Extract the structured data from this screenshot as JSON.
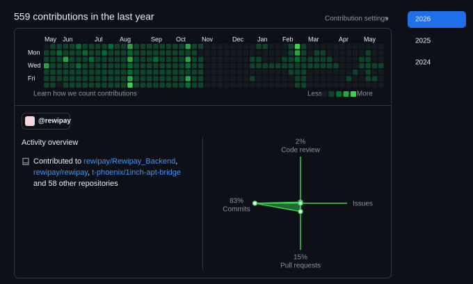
{
  "header": {
    "title": "559 contributions in the last year",
    "settings": "Contribution settings"
  },
  "years": [
    "2026",
    "2025",
    "2024"
  ],
  "contributions": {
    "months": [
      "May",
      "Jun",
      "Jul",
      "Aug",
      "Sep",
      "Oct",
      "Nov",
      "Dec",
      "Jan",
      "Feb",
      "Mar",
      "Apr",
      "May"
    ],
    "days": [
      "Mon",
      "Wed",
      "Fri"
    ],
    "level_colors": [
      "#161b22",
      "#0e4429",
      "#006d32",
      "#26a641",
      "#39d353"
    ],
    "levels": [
      [
        0,
        1,
        1,
        1,
        1,
        2,
        1,
        1,
        1,
        1,
        2,
        1,
        1,
        3,
        1,
        1,
        1,
        1,
        1,
        1,
        1,
        1,
        3,
        1,
        1,
        0,
        0,
        0,
        0,
        0,
        0,
        0,
        0,
        1,
        1,
        0,
        0,
        0,
        1,
        4,
        1,
        0,
        0,
        0,
        0,
        0,
        0,
        0,
        0,
        0,
        0,
        0,
        0
      ],
      [
        1,
        1,
        2,
        1,
        1,
        1,
        2,
        1,
        1,
        2,
        1,
        1,
        1,
        2,
        1,
        1,
        1,
        1,
        1,
        1,
        1,
        1,
        1,
        1,
        0,
        0,
        0,
        0,
        0,
        0,
        0,
        0,
        0,
        0,
        0,
        0,
        0,
        0,
        1,
        3,
        1,
        0,
        1,
        1,
        0,
        0,
        0,
        0,
        0,
        0,
        1,
        0,
        0
      ],
      [
        1,
        1,
        1,
        3,
        1,
        1,
        1,
        2,
        1,
        1,
        1,
        1,
        1,
        3,
        1,
        1,
        1,
        2,
        1,
        1,
        1,
        1,
        3,
        1,
        1,
        0,
        0,
        0,
        0,
        0,
        0,
        0,
        1,
        1,
        0,
        0,
        0,
        1,
        1,
        2,
        1,
        1,
        1,
        1,
        1,
        0,
        0,
        0,
        0,
        1,
        1,
        0,
        0
      ],
      [
        3,
        1,
        1,
        1,
        1,
        2,
        1,
        1,
        1,
        1,
        1,
        1,
        1,
        2,
        1,
        1,
        1,
        1,
        1,
        1,
        1,
        1,
        2,
        1,
        1,
        0,
        0,
        0,
        0,
        0,
        0,
        0,
        1,
        1,
        1,
        1,
        1,
        1,
        1,
        1,
        1,
        1,
        1,
        1,
        1,
        1,
        0,
        0,
        0,
        1,
        1,
        1,
        1
      ],
      [
        1,
        1,
        1,
        1,
        1,
        1,
        1,
        1,
        1,
        1,
        1,
        1,
        1,
        2,
        1,
        1,
        1,
        1,
        1,
        1,
        1,
        1,
        1,
        1,
        1,
        0,
        0,
        0,
        0,
        0,
        0,
        0,
        0,
        0,
        0,
        0,
        0,
        0,
        1,
        1,
        1,
        0,
        0,
        0,
        0,
        0,
        0,
        0,
        1,
        0,
        1,
        0,
        0
      ],
      [
        1,
        1,
        1,
        1,
        1,
        1,
        1,
        1,
        1,
        1,
        1,
        1,
        1,
        3,
        1,
        1,
        1,
        1,
        1,
        1,
        1,
        1,
        3,
        1,
        1,
        0,
        0,
        0,
        0,
        0,
        0,
        0,
        1,
        0,
        0,
        0,
        0,
        0,
        0,
        1,
        1,
        0,
        0,
        0,
        0,
        0,
        0,
        1,
        0,
        0,
        1,
        1,
        0
      ],
      [
        1,
        1,
        0,
        1,
        1,
        1,
        1,
        1,
        1,
        1,
        1,
        1,
        1,
        4,
        1,
        1,
        1,
        1,
        1,
        1,
        1,
        1,
        2,
        1,
        1,
        0,
        0,
        0,
        0,
        0,
        0,
        0,
        0,
        0,
        0,
        0,
        0,
        0,
        0,
        1,
        1,
        0,
        0,
        0,
        0,
        0,
        0,
        0,
        0,
        0,
        0,
        0,
        0
      ]
    ],
    "learn": "Learn how we count contributions",
    "less": "Less",
    "more": "More"
  },
  "org": "@rewipay",
  "activity": {
    "title": "Activity overview",
    "lines": [
      [
        {
          "text": "Contributed to ",
          "link": false
        },
        {
          "text": "rewipay/Rewipay_Backend",
          "link": true
        },
        {
          "text": ",",
          "link": false
        }
      ],
      [
        {
          "text": "rewipay/rewipay",
          "link": true
        },
        {
          "text": ", ",
          "link": false
        },
        {
          "text": "t-phoenix/1inch-apt-bridge",
          "link": true
        }
      ],
      [
        {
          "text": "and 58 other repositories",
          "link": false
        }
      ]
    ],
    "radar": [
      {
        "label": "Code review",
        "value": 2,
        "value_label": "2%"
      },
      {
        "label": "Issues",
        "value": 0
      },
      {
        "label": "Pull requests",
        "value": 15,
        "value_label": "15%"
      },
      {
        "label": "Commits",
        "value": 83,
        "value_label": "83%"
      }
    ]
  }
}
